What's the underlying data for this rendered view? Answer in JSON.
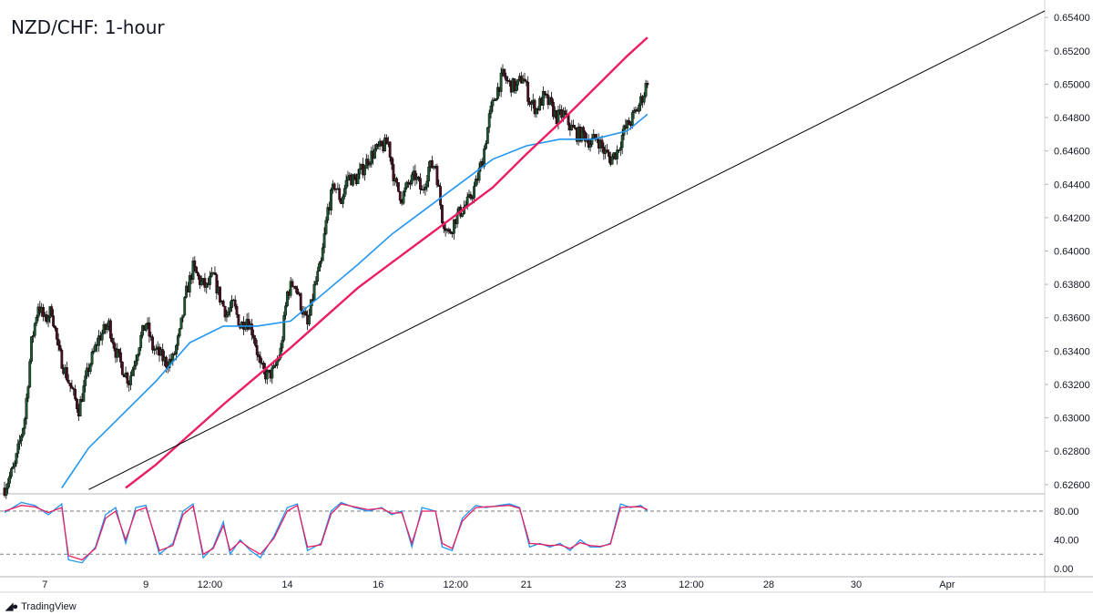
{
  "header": {
    "title": "NZD/CHF: 1-hour"
  },
  "footer": {
    "brand": "TradingView",
    "logo_icon": "tradingview-logo-icon"
  },
  "colors": {
    "up_candle": "#1e5631",
    "down_candle": "#4a1020",
    "ma_fast": "#2196f3",
    "ma_slow": "#e91e63",
    "trendline": "#000000",
    "stoch_k": "#2196f3",
    "stoch_d": "#e91e63",
    "grid": "#e6e6e6",
    "axis_text": "#131722"
  },
  "chart_data": [
    {
      "type": "candlestick",
      "title": "NZD/CHF: 1-hour",
      "ylim": [
        0.6255,
        0.6545
      ],
      "y_ticks": [
        "0.65400",
        "0.65200",
        "0.65000",
        "0.64800",
        "0.64600",
        "0.64400",
        "0.64200",
        "0.64000",
        "0.63800",
        "0.63600",
        "0.63400",
        "0.63200",
        "0.63000",
        "0.62800",
        "0.62600"
      ],
      "x_ticks": [
        "7",
        "9",
        "12:00",
        "14",
        "16",
        "12:00",
        "21",
        "23",
        "12:00",
        "28",
        "30",
        "Apr"
      ],
      "grid": false,
      "close_path": [
        [
          0,
          0.6258
        ],
        [
          3,
          0.6271
        ],
        [
          6,
          0.63
        ],
        [
          8,
          0.6345
        ],
        [
          10,
          0.6368
        ],
        [
          12,
          0.6358
        ],
        [
          14,
          0.6365
        ],
        [
          16,
          0.634
        ],
        [
          19,
          0.6322
        ],
        [
          22,
          0.6305
        ],
        [
          25,
          0.633
        ],
        [
          28,
          0.6348
        ],
        [
          31,
          0.6356
        ],
        [
          33,
          0.634
        ],
        [
          35,
          0.633
        ],
        [
          37,
          0.6322
        ],
        [
          40,
          0.6345
        ],
        [
          42,
          0.6357
        ],
        [
          44,
          0.6342
        ],
        [
          46,
          0.6338
        ],
        [
          48,
          0.6333
        ],
        [
          50,
          0.6335
        ],
        [
          52,
          0.635
        ],
        [
          54,
          0.6375
        ],
        [
          56,
          0.639
        ],
        [
          58,
          0.6382
        ],
        [
          60,
          0.6378
        ],
        [
          62,
          0.6385
        ],
        [
          64,
          0.6372
        ],
        [
          66,
          0.6362
        ],
        [
          68,
          0.6368
        ],
        [
          70,
          0.6355
        ],
        [
          72,
          0.636
        ],
        [
          74,
          0.635
        ],
        [
          76,
          0.633
        ],
        [
          78,
          0.6325
        ],
        [
          80,
          0.6328
        ],
        [
          82,
          0.634
        ],
        [
          84,
          0.6375
        ],
        [
          86,
          0.6382
        ],
        [
          88,
          0.6368
        ],
        [
          90,
          0.6355
        ],
        [
          92,
          0.6378
        ],
        [
          94,
          0.6392
        ],
        [
          96,
          0.6425
        ],
        [
          98,
          0.644
        ],
        [
          100,
          0.643
        ],
        [
          102,
          0.6445
        ],
        [
          104,
          0.6442
        ],
        [
          106,
          0.6448
        ],
        [
          108,
          0.6455
        ],
        [
          110,
          0.646
        ],
        [
          112,
          0.6462
        ],
        [
          114,
          0.6465
        ],
        [
          116,
          0.644
        ],
        [
          118,
          0.6432
        ],
        [
          120,
          0.644
        ],
        [
          122,
          0.6445
        ],
        [
          124,
          0.6435
        ],
        [
          126,
          0.645
        ],
        [
          128,
          0.6452
        ],
        [
          130,
          0.642
        ],
        [
          132,
          0.641
        ],
        [
          134,
          0.642
        ],
        [
          136,
          0.6425
        ],
        [
          138,
          0.643
        ],
        [
          140,
          0.644
        ],
        [
          142,
          0.6455
        ],
        [
          144,
          0.648
        ],
        [
          146,
          0.6495
        ],
        [
          148,
          0.6505
        ],
        [
          150,
          0.65
        ],
        [
          152,
          0.6498
        ],
        [
          154,
          0.6505
        ],
        [
          156,
          0.649
        ],
        [
          158,
          0.6485
        ],
        [
          160,
          0.6492
        ],
        [
          162,
          0.6488
        ],
        [
          164,
          0.648
        ],
        [
          166,
          0.6482
        ],
        [
          168,
          0.6475
        ],
        [
          170,
          0.647
        ],
        [
          172,
          0.647
        ],
        [
          174,
          0.6465
        ],
        [
          176,
          0.6468
        ],
        [
          178,
          0.646
        ],
        [
          180,
          0.6455
        ],
        [
          182,
          0.646
        ],
        [
          184,
          0.6472
        ],
        [
          186,
          0.6478
        ],
        [
          188,
          0.6485
        ],
        [
          190,
          0.6495
        ],
        [
          191,
          0.6503
        ]
      ],
      "series": [
        {
          "name": "",
          "kind": "moving-average-fast",
          "points": [
            [
              17,
              0.6258
            ],
            [
              25,
              0.6282
            ],
            [
              35,
              0.6302
            ],
            [
              45,
              0.6322
            ],
            [
              55,
              0.6345
            ],
            [
              65,
              0.6355
            ],
            [
              75,
              0.6355
            ],
            [
              85,
              0.6358
            ],
            [
              95,
              0.6375
            ],
            [
              105,
              0.6392
            ],
            [
              115,
              0.641
            ],
            [
              125,
              0.6425
            ],
            [
              135,
              0.644
            ],
            [
              145,
              0.6455
            ],
            [
              155,
              0.6463
            ],
            [
              165,
              0.6467
            ],
            [
              175,
              0.6467
            ],
            [
              185,
              0.6472
            ],
            [
              191,
              0.6482
            ]
          ]
        },
        {
          "name": "",
          "kind": "moving-average-slow",
          "points": [
            [
              36,
              0.6258
            ],
            [
              45,
              0.6272
            ],
            [
              55,
              0.629
            ],
            [
              65,
              0.6308
            ],
            [
              75,
              0.6325
            ],
            [
              85,
              0.6342
            ],
            [
              95,
              0.636
            ],
            [
              105,
              0.6378
            ],
            [
              115,
              0.6393
            ],
            [
              125,
              0.6408
            ],
            [
              135,
              0.6423
            ],
            [
              145,
              0.6438
            ],
            [
              155,
              0.6458
            ],
            [
              165,
              0.6477
            ],
            [
              175,
              0.6497
            ],
            [
              185,
              0.6517
            ],
            [
              191,
              0.6528
            ]
          ]
        },
        {
          "name": "",
          "kind": "trendline",
          "points": [
            [
              25,
              0.6257
            ],
            [
              260,
              0.654
            ]
          ]
        }
      ]
    },
    {
      "type": "line",
      "subtype": "stochastic",
      "ylim": [
        0,
        100
      ],
      "y_ticks": [
        "80.00",
        "40.00",
        "0.00"
      ],
      "levels": [
        80,
        20
      ],
      "series": [
        {
          "name": "",
          "kind": "stoch-k",
          "points": [
            [
              0,
              78
            ],
            [
              5,
              92
            ],
            [
              9,
              88
            ],
            [
              13,
              75
            ],
            [
              17,
              90
            ],
            [
              19,
              12
            ],
            [
              23,
              8
            ],
            [
              27,
              30
            ],
            [
              30,
              75
            ],
            [
              33,
              85
            ],
            [
              36,
              35
            ],
            [
              39,
              85
            ],
            [
              42,
              88
            ],
            [
              46,
              20
            ],
            [
              50,
              35
            ],
            [
              53,
              80
            ],
            [
              56,
              90
            ],
            [
              59,
              15
            ],
            [
              62,
              30
            ],
            [
              65,
              65
            ],
            [
              67,
              20
            ],
            [
              70,
              40
            ],
            [
              73,
              25
            ],
            [
              76,
              15
            ],
            [
              80,
              45
            ],
            [
              84,
              85
            ],
            [
              87,
              90
            ],
            [
              90,
              25
            ],
            [
              94,
              35
            ],
            [
              97,
              80
            ],
            [
              100,
              92
            ],
            [
              104,
              85
            ],
            [
              108,
              80
            ],
            [
              112,
              85
            ],
            [
              115,
              75
            ],
            [
              118,
              80
            ],
            [
              121,
              30
            ],
            [
              124,
              85
            ],
            [
              128,
              80
            ],
            [
              130,
              30
            ],
            [
              133,
              25
            ],
            [
              136,
              70
            ],
            [
              140,
              88
            ],
            [
              143,
              85
            ],
            [
              147,
              88
            ],
            [
              150,
              90
            ],
            [
              153,
              85
            ],
            [
              156,
              30
            ],
            [
              159,
              35
            ],
            [
              162,
              30
            ],
            [
              165,
              35
            ],
            [
              168,
              25
            ],
            [
              171,
              40
            ],
            [
              174,
              30
            ],
            [
              177,
              30
            ],
            [
              180,
              35
            ],
            [
              183,
              90
            ],
            [
              186,
              85
            ],
            [
              189,
              88
            ],
            [
              191,
              80
            ]
          ]
        },
        {
          "name": "",
          "kind": "stoch-d",
          "points": [
            [
              0,
              80
            ],
            [
              5,
              88
            ],
            [
              9,
              86
            ],
            [
              13,
              78
            ],
            [
              17,
              85
            ],
            [
              19,
              18
            ],
            [
              23,
              12
            ],
            [
              27,
              28
            ],
            [
              30,
              70
            ],
            [
              33,
              80
            ],
            [
              36,
              40
            ],
            [
              39,
              80
            ],
            [
              42,
              85
            ],
            [
              46,
              25
            ],
            [
              50,
              32
            ],
            [
              53,
              75
            ],
            [
              56,
              87
            ],
            [
              59,
              20
            ],
            [
              62,
              28
            ],
            [
              65,
              60
            ],
            [
              67,
              25
            ],
            [
              70,
              38
            ],
            [
              73,
              28
            ],
            [
              76,
              20
            ],
            [
              80,
              42
            ],
            [
              84,
              80
            ],
            [
              87,
              88
            ],
            [
              90,
              30
            ],
            [
              94,
              33
            ],
            [
              97,
              76
            ],
            [
              100,
              90
            ],
            [
              104,
              86
            ],
            [
              108,
              82
            ],
            [
              112,
              84
            ],
            [
              115,
              77
            ],
            [
              118,
              78
            ],
            [
              121,
              35
            ],
            [
              124,
              80
            ],
            [
              128,
              80
            ],
            [
              130,
              35
            ],
            [
              133,
              28
            ],
            [
              136,
              66
            ],
            [
              140,
              85
            ],
            [
              143,
              86
            ],
            [
              147,
              87
            ],
            [
              150,
              88
            ],
            [
              153,
              84
            ],
            [
              156,
              35
            ],
            [
              159,
              34
            ],
            [
              162,
              32
            ],
            [
              165,
              33
            ],
            [
              168,
              28
            ],
            [
              171,
              36
            ],
            [
              174,
              32
            ],
            [
              177,
              31
            ],
            [
              180,
              34
            ],
            [
              183,
              85
            ],
            [
              186,
              86
            ],
            [
              189,
              86
            ],
            [
              191,
              82
            ]
          ]
        }
      ]
    }
  ]
}
